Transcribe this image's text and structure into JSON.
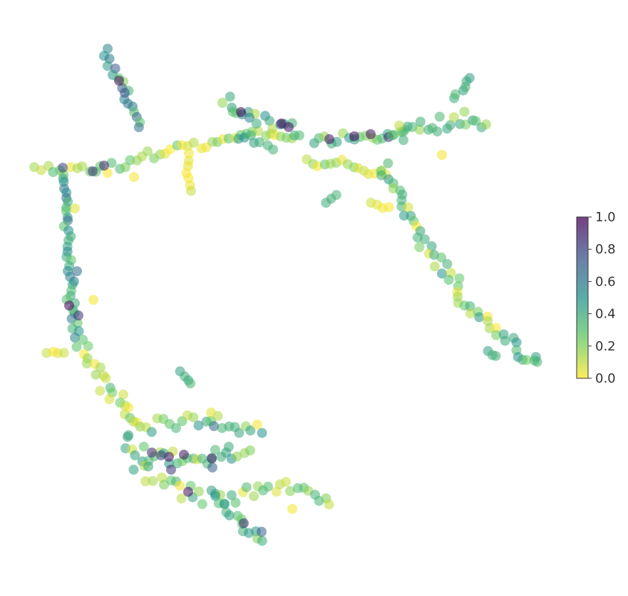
{
  "chart_data": {
    "type": "scatter",
    "title": "",
    "xlabel": "",
    "ylabel": "",
    "axes_visible": false,
    "grid": false,
    "colormap": "viridis_r",
    "colormap_stops": [
      "#fde725",
      "#5ec962",
      "#21918c",
      "#3b528b",
      "#440154"
    ],
    "point_alpha": 0.55,
    "colorbar": {
      "range": [
        0.0,
        1.0
      ],
      "ticks": [
        "0.0",
        "0.2",
        "0.4",
        "0.6",
        "0.8",
        "1.0"
      ],
      "placement": "right"
    },
    "x_range": [
      0,
      881
    ],
    "y_range": [
      0,
      835
    ],
    "segments": [
      {
        "path": [
          [
            148,
            70
          ],
          [
            165,
            110
          ],
          [
            185,
            150
          ],
          [
            200,
            185
          ]
        ],
        "w": 5,
        "v0": [
          0.2,
          0.75
        ],
        "step": 7,
        "hot": [
          [
            167,
            113,
            0.95
          ],
          [
            175,
            130,
            0.75
          ]
        ]
      },
      {
        "path": [
          [
            50,
            230
          ],
          [
            100,
            240
          ],
          [
            150,
            233
          ],
          [
            200,
            220
          ],
          [
            240,
            212
          ]
        ],
        "w": 9,
        "v0": [
          0.0,
          0.35
        ],
        "step": 8,
        "hot": [
          [
            88,
            235,
            0.8
          ],
          [
            130,
            240,
            0.85
          ],
          [
            146,
            232,
            0.9
          ]
        ]
      },
      {
        "path": [
          [
            240,
            212
          ],
          [
            290,
            205
          ],
          [
            330,
            195
          ],
          [
            380,
            182
          ],
          [
            420,
            190
          ]
        ],
        "w": 8,
        "v0": [
          0.0,
          0.3
        ],
        "step": 8
      },
      {
        "path": [
          [
            265,
            225
          ],
          [
            265,
            275
          ]
        ],
        "w": 4,
        "v0": [
          0.0,
          0.1
        ],
        "step": 9
      },
      {
        "path": [
          [
            320,
            135
          ],
          [
            325,
            160
          ],
          [
            355,
            165
          ],
          [
            400,
            175
          ],
          [
            430,
            185
          ]
        ],
        "w": 10,
        "v0": [
          0.1,
          0.6
        ],
        "step": 8,
        "hot": [
          [
            338,
            157,
            0.98
          ],
          [
            395,
            173,
            0.99
          ],
          [
            405,
            178,
            0.95
          ],
          [
            350,
            165,
            0.55
          ]
        ]
      },
      {
        "path": [
          [
            335,
            190
          ],
          [
            365,
            200
          ],
          [
            395,
            208
          ]
        ],
        "w": 6,
        "v0": [
          0.35,
          0.55
        ],
        "step": 9
      },
      {
        "path": [
          [
            440,
            195
          ],
          [
            490,
            192
          ],
          [
            545,
            188
          ],
          [
            575,
            180
          ]
        ],
        "w": 7,
        "v0": [
          0.15,
          0.55
        ],
        "step": 8,
        "hot": [
          [
            462,
            195,
            0.95
          ],
          [
            497,
            191,
            0.99
          ],
          [
            520,
            188,
            0.95
          ],
          [
            545,
            192,
            0.85
          ]
        ]
      },
      {
        "path": [
          [
            430,
            225
          ],
          [
            480,
            230
          ],
          [
            520,
            235
          ],
          [
            550,
            245
          ]
        ],
        "w": 8,
        "v0": [
          0.0,
          0.25
        ],
        "step": 8
      },
      {
        "path": [
          [
            555,
            195
          ],
          [
            580,
            180
          ],
          [
            610,
            170
          ],
          [
            650,
            160
          ],
          [
            690,
            170
          ]
        ],
        "w": 18,
        "v0": [
          0.1,
          0.45
        ],
        "step": 7
      },
      {
        "path": [
          [
            640,
            140
          ],
          [
            660,
            100
          ]
        ],
        "w": 6,
        "v0": [
          0.3,
          0.45
        ],
        "step": 8
      },
      {
        "path": [
          [
            540,
            230
          ],
          [
            555,
            270
          ],
          [
            570,
            300
          ],
          [
            590,
            330
          ],
          [
            620,
            375
          ],
          [
            650,
            420
          ],
          [
            680,
            455
          ],
          [
            720,
            485
          ],
          [
            760,
            510
          ]
        ],
        "w": 11,
        "v0": [
          0.0,
          0.5
        ],
        "step": 7
      },
      {
        "path": [
          [
            520,
            288
          ],
          [
            555,
            295
          ]
        ],
        "w": 5,
        "v0": [
          0.0,
          0.15
        ],
        "step": 9
      },
      {
        "path": [
          [
            460,
            285
          ],
          [
            480,
            268
          ]
        ],
        "w": 4,
        "v0": [
          0.2,
          0.4
        ],
        "step": 8
      },
      {
        "path": [
          [
            690,
            490
          ],
          [
            700,
            505
          ]
        ],
        "w": 5,
        "v0": [
          0.35,
          0.45
        ],
        "step": 7
      },
      {
        "path": [
          [
            85,
            250
          ],
          [
            92,
            290
          ],
          [
            97,
            330
          ],
          [
            97,
            380
          ],
          [
            98,
            420
          ],
          [
            105,
            460
          ],
          [
            115,
            490
          ]
        ],
        "w": 6,
        "v0": [
          0.25,
          0.65
        ],
        "step": 7,
        "hot": [
          [
            97,
            428,
            0.99
          ],
          [
            110,
            442,
            0.85
          ],
          [
            108,
            380,
            0.65
          ]
        ]
      },
      {
        "path": [
          [
            65,
            495
          ],
          [
            100,
            495
          ]
        ],
        "w": 3,
        "v0": [
          0.0,
          0.1
        ],
        "step": 8
      },
      {
        "path": [
          [
            115,
            490
          ],
          [
            140,
            530
          ],
          [
            160,
            555
          ],
          [
            180,
            580
          ],
          [
            190,
            600
          ]
        ],
        "w": 12,
        "v0": [
          0.0,
          0.35
        ],
        "step": 7
      },
      {
        "path": [
          [
            180,
            600
          ],
          [
            230,
            595
          ],
          [
            280,
            592
          ],
          [
            330,
            595
          ],
          [
            375,
            598
          ]
        ],
        "w": 12,
        "v0": [
          0.0,
          0.5
        ],
        "step": 8,
        "hot": [
          [
            300,
            597,
            0.65
          ]
        ]
      },
      {
        "path": [
          [
            175,
            620
          ],
          [
            210,
            640
          ],
          [
            250,
            640
          ],
          [
            290,
            640
          ],
          [
            330,
            630
          ],
          [
            355,
            640
          ]
        ],
        "w": 13,
        "v0": [
          0.05,
          0.55
        ],
        "step": 7,
        "hot": [
          [
            213,
            634,
            0.9
          ],
          [
            237,
            640,
            0.95
          ],
          [
            258,
            637,
            0.95
          ],
          [
            297,
            642,
            0.9
          ],
          [
            240,
            658,
            0.85
          ],
          [
            226,
            638,
            0.8
          ]
        ]
      },
      {
        "path": [
          [
            190,
            655
          ],
          [
            230,
            680
          ],
          [
            265,
            690
          ],
          [
            300,
            700
          ],
          [
            340,
            705
          ]
        ],
        "w": 13,
        "v0": [
          0.0,
          0.45
        ],
        "step": 8,
        "hot": [
          [
            264,
            689,
            0.95
          ],
          [
            298,
            655,
            0.7
          ]
        ]
      },
      {
        "path": [
          [
            300,
            700
          ],
          [
            325,
            720
          ],
          [
            345,
            740
          ],
          [
            375,
            760
          ]
        ],
        "w": 6,
        "v0": [
          0.1,
          0.5
        ],
        "step": 8,
        "hot": [
          [
            342,
            733,
            0.85
          ],
          [
            367,
            745,
            0.7
          ]
        ]
      },
      {
        "path": [
          [
            340,
            690
          ],
          [
            400,
            680
          ],
          [
            440,
            695
          ],
          [
            470,
            710
          ]
        ],
        "w": 8,
        "v0": [
          0.0,
          0.35
        ],
        "step": 8
      },
      {
        "path": [
          [
            255,
            520
          ],
          [
            275,
            540
          ]
        ],
        "w": 3,
        "v0": [
          0.35,
          0.45
        ],
        "step": 7
      }
    ],
    "extra_points": [
      [
        131,
        420,
        0.02
      ],
      [
        188,
        248,
        0.02
      ],
      [
        265,
        215,
        0.02
      ],
      [
        620,
        217,
        0.02
      ],
      [
        105,
        292,
        0.05
      ],
      [
        296,
        578,
        0.05
      ],
      [
        410,
        713,
        0.02
      ],
      [
        750,
        505,
        0.35
      ],
      [
        560,
        176,
        0.1
      ]
    ]
  }
}
